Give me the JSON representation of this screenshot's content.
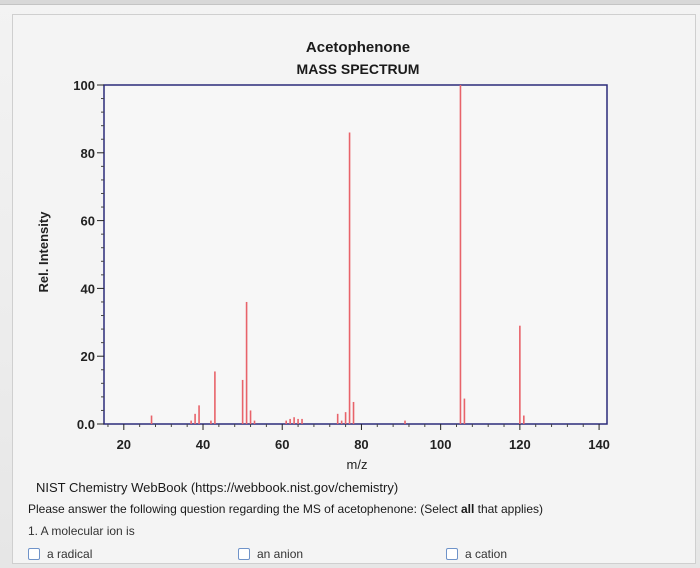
{
  "chart_data": {
    "type": "bar",
    "title": "Acetophenone",
    "subtitle": "MASS SPECTRUM",
    "xlabel": "m/z",
    "ylabel": "Rel. Intensity",
    "xlim": [
      15,
      142
    ],
    "ylim": [
      0,
      100
    ],
    "x_ticks": [
      20,
      40,
      60,
      80,
      100,
      120,
      140
    ],
    "y_tick_labels": [
      "0.0",
      "20",
      "40",
      "60",
      "80",
      "100"
    ],
    "y_ticks": [
      0,
      20,
      40,
      60,
      80,
      100
    ],
    "bar_color": "#e8636a",
    "peaks": [
      {
        "mz": 27,
        "intensity": 2.5
      },
      {
        "mz": 37,
        "intensity": 1.0
      },
      {
        "mz": 38,
        "intensity": 3.0
      },
      {
        "mz": 39,
        "intensity": 5.5
      },
      {
        "mz": 42,
        "intensity": 1.0
      },
      {
        "mz": 43,
        "intensity": 15.5
      },
      {
        "mz": 50,
        "intensity": 13.0
      },
      {
        "mz": 51,
        "intensity": 36.0
      },
      {
        "mz": 52,
        "intensity": 4.0
      },
      {
        "mz": 53,
        "intensity": 1.0
      },
      {
        "mz": 61,
        "intensity": 1.0
      },
      {
        "mz": 62,
        "intensity": 1.5
      },
      {
        "mz": 63,
        "intensity": 2.0
      },
      {
        "mz": 64,
        "intensity": 1.5
      },
      {
        "mz": 65,
        "intensity": 1.5
      },
      {
        "mz": 74,
        "intensity": 3.0
      },
      {
        "mz": 75,
        "intensity": 1.0
      },
      {
        "mz": 76,
        "intensity": 3.5
      },
      {
        "mz": 77,
        "intensity": 86.0
      },
      {
        "mz": 78,
        "intensity": 6.5
      },
      {
        "mz": 91,
        "intensity": 1.0
      },
      {
        "mz": 105,
        "intensity": 100.0
      },
      {
        "mz": 106,
        "intensity": 7.5
      },
      {
        "mz": 120,
        "intensity": 29.0
      },
      {
        "mz": 121,
        "intensity": 2.5
      }
    ]
  },
  "source_note": "NIST Chemistry WebBook (https://webbook.nist.gov/chemistry)",
  "question": {
    "prompt_before": "Please answer the following question regarding the MS of acetophenone: (Select ",
    "prompt_bold": "all",
    "prompt_after": " that applies)",
    "item_1": "1. A molecular ion is",
    "options": [
      "a radical",
      "an anion",
      "a cation"
    ]
  }
}
